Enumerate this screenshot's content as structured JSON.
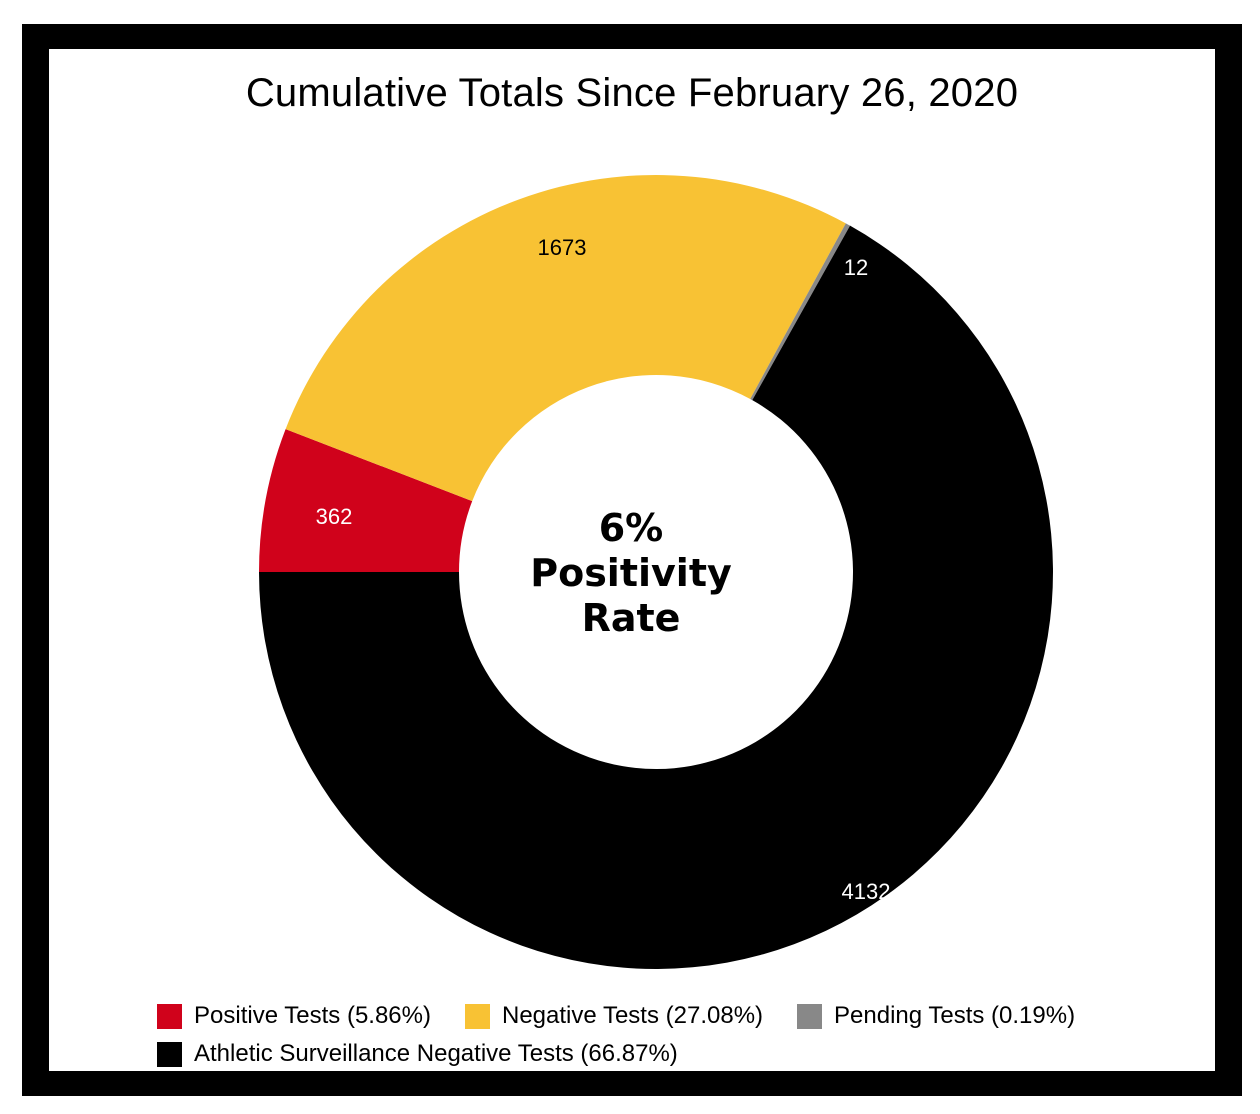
{
  "chart_data": {
    "type": "donut",
    "title": "Cumulative Totals Since February 26, 2020",
    "center_text": [
      "6%",
      "Positivity",
      "Rate"
    ],
    "series": [
      {
        "name": "Positive Tests (5.86%)",
        "value": 362,
        "label": "362",
        "color": "#D0021B",
        "label_color": "#FFFFFF"
      },
      {
        "name": "Negative Tests (27.08%)",
        "value": 1673,
        "label": "1673",
        "color": "#F8C234",
        "label_color": "#000000"
      },
      {
        "name": "Pending Tests (0.19%)",
        "value": 12,
        "label": "12",
        "color": "#888888",
        "label_color": "#FFFFFF"
      },
      {
        "name": "Athletic Surveillance Negative Tests (66.87%)",
        "value": 4132,
        "label": "4132",
        "color": "#000000",
        "label_color": "#FFFFFF"
      }
    ],
    "start_angle_deg": 270,
    "direction": "clockwise",
    "legend_position": "bottom"
  }
}
